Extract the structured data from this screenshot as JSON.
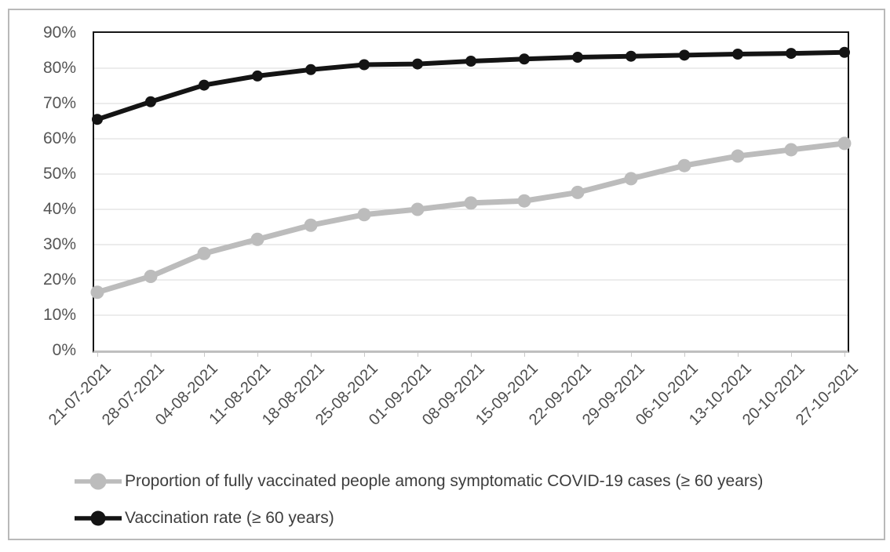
{
  "chart_data": {
    "type": "line",
    "categories": [
      "21-07-2021",
      "28-07-2021",
      "04-08-2021",
      "11-08-2021",
      "18-08-2021",
      "25-08-2021",
      "01-09-2021",
      "08-09-2021",
      "15-09-2021",
      "22-09-2021",
      "29-09-2021",
      "06-10-2021",
      "13-10-2021",
      "20-10-2021",
      "27-10-2021"
    ],
    "series": [
      {
        "name": "Proportion of fully vaccinated people among symptomatic COVID-19 cases (≥ 60 years)",
        "color": "#bcbcbc",
        "line_width": 7,
        "marker_radius": 8.5,
        "values": [
          16.5,
          21.0,
          27.5,
          31.5,
          35.5,
          38.5,
          40.0,
          41.8,
          42.4,
          44.8,
          48.7,
          52.4,
          55.1,
          56.9,
          58.7
        ]
      },
      {
        "name": "Vaccination rate (≥ 60 years)",
        "color": "#141414",
        "line_width": 6,
        "marker_radius": 7,
        "values": [
          65.5,
          70.5,
          75.2,
          77.8,
          79.6,
          81.0,
          81.2,
          82.0,
          82.6,
          83.1,
          83.4,
          83.7,
          84.0,
          84.2,
          84.5
        ]
      }
    ],
    "title": "",
    "xlabel": "",
    "ylabel": "",
    "ylim": [
      0,
      90
    ],
    "ytick_step": 10,
    "ytick_labels": [
      "0%",
      "10%",
      "20%",
      "30%",
      "40%",
      "50%",
      "60%",
      "70%",
      "80%",
      "90%"
    ],
    "grid": true,
    "gridline_color": "#d9d9d9",
    "legend_position": "bottom-left"
  }
}
